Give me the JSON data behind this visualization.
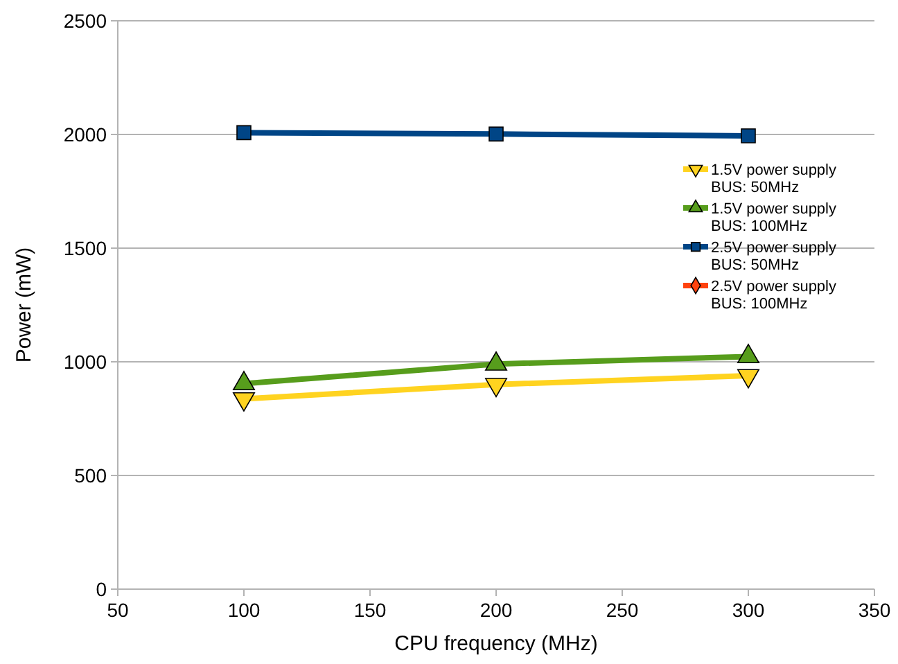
{
  "chart_data": {
    "type": "line",
    "xlabel": "CPU frequency (MHz)",
    "ylabel": "Power (mW)",
    "x": [
      100,
      200,
      300
    ],
    "series": [
      {
        "name": "1.5V power supply BUS: 50MHz",
        "color": "#ffd320",
        "marker": "triangle-down",
        "values": [
          837,
          900,
          939
        ]
      },
      {
        "name": "1.5V power supply BUS: 100MHz",
        "color": "#579d1c",
        "marker": "triangle",
        "values": [
          904,
          990,
          1023
        ]
      },
      {
        "name": "2.5V power supply BUS: 50MHz",
        "color": "#004586",
        "marker": "square",
        "values": [
          2008,
          2002,
          1994
        ]
      },
      {
        "name": "2.5V power supply BUS: 100MHz",
        "color": "#ff420e",
        "marker": "diamond",
        "values": [
          null,
          null,
          null
        ]
      }
    ],
    "xlim": [
      50,
      350
    ],
    "xticks": [
      50,
      100,
      150,
      200,
      250,
      300,
      350
    ],
    "ylim": [
      0,
      2500
    ],
    "yticks": [
      0,
      500,
      1000,
      1500,
      2000,
      2500
    ],
    "grid": "y",
    "legend": "right"
  }
}
